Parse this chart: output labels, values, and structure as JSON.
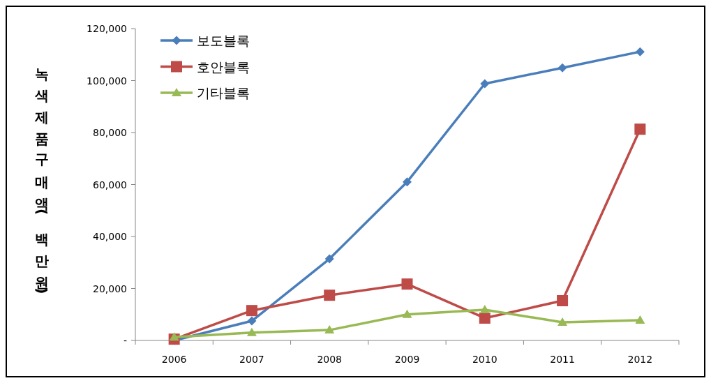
{
  "chart_data": {
    "type": "line",
    "ylabel": "녹색제품구매액(백만원)",
    "categories": [
      "2006",
      "2007",
      "2008",
      "2009",
      "2010",
      "2011",
      "2012"
    ],
    "series": [
      {
        "name": "보도블록",
        "color": "#4a7ebb",
        "marker": "diamond",
        "values": [
          0,
          7500,
          31400,
          61000,
          98800,
          104900,
          111100
        ]
      },
      {
        "name": "호안블록",
        "color": "#be4b48",
        "marker": "square",
        "values": [
          500,
          11500,
          17400,
          21700,
          8600,
          15300,
          81300
        ]
      },
      {
        "name": "기타블록",
        "color": "#98b954",
        "marker": "triangle",
        "values": [
          1300,
          3000,
          4000,
          10000,
          11800,
          7000,
          7800
        ]
      }
    ],
    "ylim": [
      0,
      120000
    ],
    "yticks": [
      {
        "value": 0,
        "label": "-"
      },
      {
        "value": 20000,
        "label": "20,000"
      },
      {
        "value": 40000,
        "label": "40,000"
      },
      {
        "value": 60000,
        "label": "60,000"
      },
      {
        "value": 80000,
        "label": "80,000"
      },
      {
        "value": 100000,
        "label": "100,000"
      },
      {
        "value": 120000,
        "label": "120,000"
      }
    ],
    "grid": false,
    "legend": "top left",
    "line_style": "solid"
  }
}
